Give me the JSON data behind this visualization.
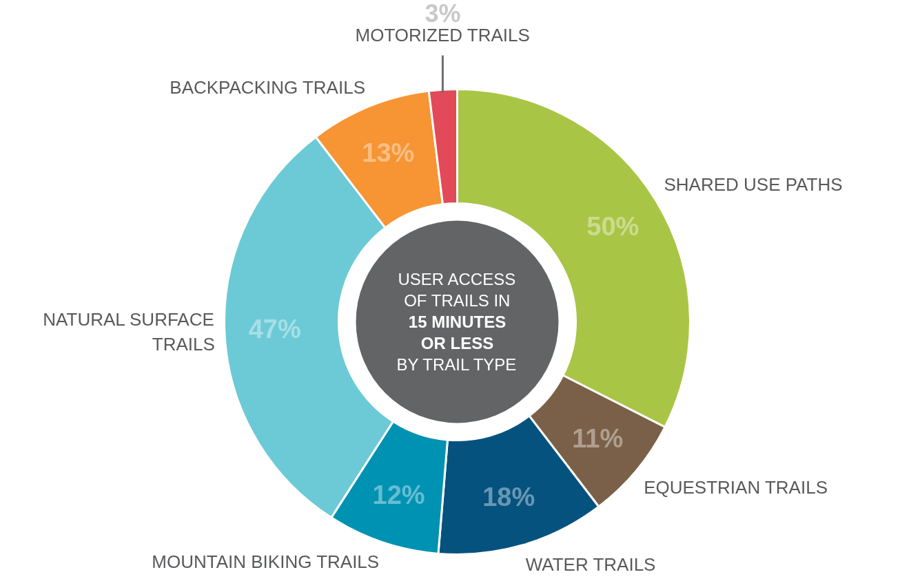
{
  "chart_data": {
    "type": "donut",
    "title": "USER ACCESS\nOF TRAILS IN\n15 MINUTES\nOR LESS\nBY TRAIL TYPE",
    "categories": [
      "SHARED USE PATHS",
      "EQUESTRIAN TRAILS",
      "WATER TRAILS",
      "MOUNTAIN BIKING TRAILS",
      "NATURAL SURFACE\nTRAILS",
      "BACKPACKING TRAILS",
      "MOTORIZED TRAILS"
    ],
    "values": [
      50,
      11,
      18,
      12,
      47,
      13,
      3
    ],
    "colors": [
      "#a9c546",
      "#7a6048",
      "#05527e",
      "#0092b3",
      "#6ccad6",
      "#f79433",
      "#e24959"
    ],
    "value_labels": [
      "50%",
      "11%",
      "18%",
      "12%",
      "47%",
      "13%",
      "3%"
    ]
  }
}
